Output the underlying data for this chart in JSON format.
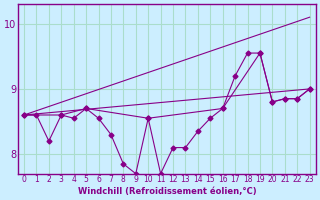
{
  "bg_color": "#cceeff",
  "grid_color": "#aaddcc",
  "line_color": "#880088",
  "xlabel": "Windchill (Refroidissement éolien,°C)",
  "ylim": [
    7.7,
    10.3
  ],
  "xlim": [
    -0.5,
    23.5
  ],
  "yticks": [
    8,
    9,
    10
  ],
  "xticks": [
    0,
    1,
    2,
    3,
    4,
    5,
    6,
    7,
    8,
    9,
    10,
    11,
    12,
    13,
    14,
    15,
    16,
    17,
    18,
    19,
    20,
    21,
    22,
    23
  ],
  "series1_x": [
    0,
    1,
    2,
    3,
    4,
    5,
    6,
    7,
    8,
    9,
    10,
    11,
    12,
    13,
    14,
    15,
    16,
    17,
    18,
    19,
    20,
    21,
    22,
    23
  ],
  "series1_y": [
    8.6,
    8.6,
    8.2,
    8.6,
    8.55,
    8.7,
    8.55,
    8.3,
    7.85,
    7.7,
    8.55,
    7.7,
    8.1,
    8.1,
    8.35,
    8.55,
    8.7,
    9.2,
    9.55,
    9.55,
    8.8,
    8.85,
    8.85,
    9.0
  ],
  "series2_x": [
    0,
    3,
    5,
    10,
    16,
    19,
    20,
    21,
    22,
    23
  ],
  "series2_y": [
    8.6,
    8.6,
    8.7,
    8.55,
    8.7,
    9.55,
    8.8,
    8.85,
    8.85,
    9.0
  ],
  "trend1_x": [
    0,
    23
  ],
  "trend1_y": [
    8.6,
    9.0
  ],
  "trend2_x": [
    0,
    23
  ],
  "trend2_y": [
    8.6,
    10.1
  ]
}
